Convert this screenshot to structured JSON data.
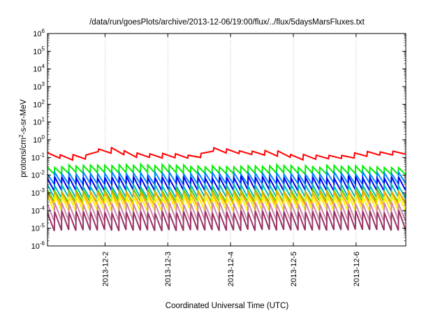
{
  "chart_data": {
    "type": "line",
    "title": "/data/run/goesPlots/archive/2013-12-06/19:00/flux/../flux/5daysMarsFluxes.txt",
    "xlabel": "Coordinated Universal Time (UTC)",
    "ylabel": {
      "pre": "protons/cm",
      "sup": "2",
      "post": "-s-sr-MeV"
    },
    "yscale": "log",
    "ylim_exp": [
      -6,
      6
    ],
    "y_ticks": [
      {
        "base": "10",
        "exp": "-6"
      },
      {
        "base": "10",
        "exp": "-5"
      },
      {
        "base": "10",
        "exp": "-4"
      },
      {
        "base": "10",
        "exp": "-3"
      },
      {
        "base": "10",
        "exp": "-2"
      },
      {
        "base": "10",
        "exp": "-1"
      },
      {
        "base": "10",
        "exp": "0"
      },
      {
        "base": "10",
        "exp": "1"
      },
      {
        "base": "10",
        "exp": "2"
      },
      {
        "base": "10",
        "exp": "3"
      },
      {
        "base": "10",
        "exp": "4"
      },
      {
        "base": "10",
        "exp": "5"
      },
      {
        "base": "10",
        "exp": "6"
      }
    ],
    "xlim": [
      "2013-12-01 02:00",
      "2013-12-06 19:00"
    ],
    "x_ticks": [
      "2013-12-2",
      "2013-12-3",
      "2013-12-4",
      "2013-12-5",
      "2013-12-6"
    ],
    "grid": true,
    "series": [
      {
        "color": "#ff0000",
        "sawtooth_count": 28,
        "noise_seed": 1,
        "envelope": [
          [
            "2013-12-01 02:00",
            -0.85
          ],
          [
            "2013-12-01 16:00",
            -1.1
          ],
          [
            "2013-12-01 20:00",
            -0.6
          ],
          [
            "2013-12-02 00:00",
            -0.55
          ],
          [
            "2013-12-02 12:00",
            -0.9
          ],
          [
            "2013-12-03 12:00",
            -0.95
          ],
          [
            "2013-12-03 16:00",
            -0.5
          ],
          [
            "2013-12-04 00:00",
            -0.65
          ],
          [
            "2013-12-04 12:00",
            -0.7
          ],
          [
            "2013-12-05 06:00",
            -1.05
          ],
          [
            "2013-12-05 18:00",
            -0.95
          ],
          [
            "2013-12-06 19:00",
            -0.7
          ]
        ],
        "amplitude": 0.22
      },
      {
        "color": "#00ee00",
        "sawtooth_count": 50,
        "noise_seed": 2,
        "envelope": [
          [
            "2013-12-01 02:00",
            -1.75
          ],
          [
            "2013-12-01 12:00",
            -1.65
          ],
          [
            "2013-12-06 19:00",
            -1.72
          ]
        ],
        "amplitude": 0.42
      },
      {
        "color": "#0088ff",
        "sawtooth_count": 50,
        "noise_seed": 3,
        "envelope": [
          [
            "2013-12-01 02:00",
            -2.2
          ],
          [
            "2013-12-06 19:00",
            -2.18
          ]
        ],
        "amplitude": 0.6
      },
      {
        "color": "#0000ee",
        "sawtooth_count": 50,
        "noise_seed": 4,
        "envelope": [
          [
            "2013-12-01 02:00",
            -2.5
          ],
          [
            "2013-12-06 19:00",
            -2.48
          ]
        ],
        "amplitude": 0.75
      },
      {
        "color": "#00bbbb",
        "sawtooth_count": 50,
        "noise_seed": 5,
        "envelope": [
          [
            "2013-12-01 02:00",
            -2.95
          ],
          [
            "2013-12-06 19:00",
            -2.92
          ]
        ],
        "amplitude": 0.7
      },
      {
        "color": "#55cc00",
        "sawtooth_count": 50,
        "noise_seed": 6,
        "envelope": [
          [
            "2013-12-01 02:00",
            -3.2
          ],
          [
            "2013-12-06 19:00",
            -3.18
          ]
        ],
        "amplitude": 0.65
      },
      {
        "color": "#ffa500",
        "sawtooth_count": 50,
        "noise_seed": 7,
        "envelope": [
          [
            "2013-12-01 02:00",
            -3.35
          ],
          [
            "2013-12-06 19:00",
            -3.32
          ]
        ],
        "amplitude": 0.75
      },
      {
        "color": "#ffee00",
        "sawtooth_count": 50,
        "noise_seed": 8,
        "envelope": [
          [
            "2013-12-01 02:00",
            -3.6
          ],
          [
            "2013-12-06 19:00",
            -3.58
          ]
        ],
        "amplitude": 0.85
      },
      {
        "color": "#cc88aa",
        "sawtooth_count": 50,
        "noise_seed": 9,
        "envelope": [
          [
            "2013-12-01 02:00",
            -4.1
          ],
          [
            "2013-12-06 19:00",
            -4.08
          ]
        ],
        "amplitude": 1.0
      },
      {
        "color": "#993366",
        "sawtooth_count": 50,
        "noise_seed": 10,
        "envelope": [
          [
            "2013-12-01 02:00",
            -4.6
          ],
          [
            "2013-12-06 19:00",
            -4.58
          ]
        ],
        "amplitude": 1.05
      }
    ]
  }
}
